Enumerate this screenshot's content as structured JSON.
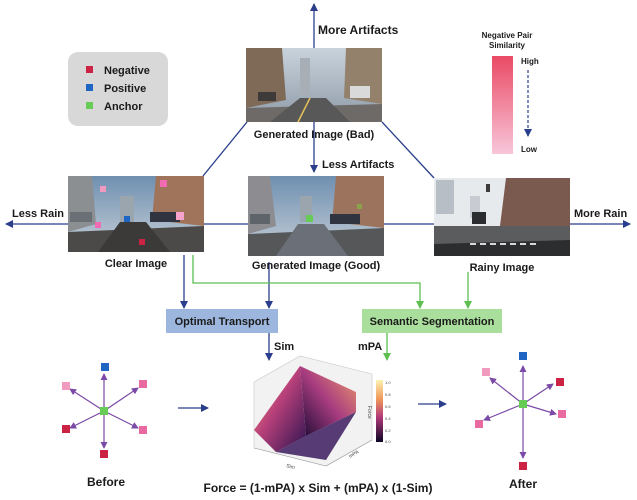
{
  "labels": {
    "more_artifacts": "More Artifacts",
    "less_artifacts": "Less Artifacts",
    "less_rain": "Less Rain",
    "more_rain": "More Rain",
    "generated_bad": "Generated Image (Bad)",
    "generated_good": "Generated Image (Good)",
    "clear_image": "Clear Image",
    "rainy_image": "Rainy Image",
    "optimal_transport": "Optimal Transport",
    "semantic_segmentation": "Semantic Segmentation",
    "sim": "Sim",
    "mpa": "mPA",
    "before": "Before",
    "after": "After",
    "formula": "Force = (1-mPA) x Sim + (mPA) x (1-Sim)"
  },
  "legend": {
    "items": [
      {
        "label": "Negative",
        "color": "#cc2244"
      },
      {
        "label": "Positive",
        "color": "#1f66c4"
      },
      {
        "label": "Anchor",
        "color": "#66cc55"
      }
    ]
  },
  "similarity": {
    "title_line1": "Negative Pair",
    "title_line2": "Similarity",
    "high": "High",
    "low": "Low",
    "color_high": "#ea4a64",
    "color_low": "#f8c6da"
  },
  "plot": {
    "xlabel": "Sim",
    "ylabel": "mPA",
    "zlabel": "Force",
    "ticks": [
      "1.0",
      "0.8",
      "0.6",
      "0.4",
      "0.2",
      "0.0"
    ]
  },
  "colors": {
    "blue_arrow": "#2a3e8c",
    "green_line": "#5cbf50",
    "ot_box": "#9db6dd",
    "seg_box": "#a9de9c",
    "negative": "#cc2244",
    "positive": "#1f66c4",
    "anchor": "#66cc55",
    "pink": "#e96aa0",
    "spoke": "#7b4aa6"
  }
}
